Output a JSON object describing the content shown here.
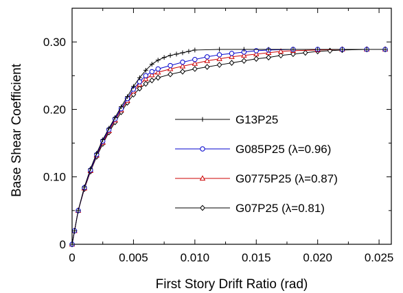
{
  "chart_data": {
    "type": "line",
    "title": "",
    "xlabel": "First Story Drift Ratio (rad)",
    "ylabel": "Base Shear Coefficient",
    "xlim": [
      0,
      0.026
    ],
    "ylim": [
      0,
      0.35
    ],
    "x_ticks": [
      0,
      0.005,
      0.01,
      0.015,
      0.02,
      0.025
    ],
    "x_tick_labels": [
      "0",
      "0.005",
      "0.010",
      "0.015",
      "0.020",
      "0.025"
    ],
    "y_ticks": [
      0,
      0.1,
      0.2,
      0.3
    ],
    "y_tick_labels": [
      "0",
      "0.10",
      "0.20",
      "0.30"
    ],
    "grid": false,
    "legend_position": "center-right",
    "series": [
      {
        "name": "G13P25",
        "color": "#000000",
        "marker": "plus",
        "x": [
          0,
          0.0002,
          0.0005,
          0.001,
          0.0015,
          0.002,
          0.0025,
          0.003,
          0.0035,
          0.004,
          0.0045,
          0.005,
          0.0055,
          0.006,
          0.0065,
          0.007,
          0.0075,
          0.008,
          0.0085,
          0.009,
          0.0095,
          0.01,
          0.012,
          0.014,
          0.016,
          0.018,
          0.02,
          0.022,
          0.024,
          0.0255
        ],
        "y": [
          0,
          0.02,
          0.05,
          0.085,
          0.112,
          0.135,
          0.155,
          0.172,
          0.188,
          0.204,
          0.219,
          0.234,
          0.247,
          0.258,
          0.267,
          0.273,
          0.277,
          0.28,
          0.282,
          0.284,
          0.286,
          0.288,
          0.289,
          0.289,
          0.289,
          0.289,
          0.289,
          0.289,
          0.289,
          0.289
        ]
      },
      {
        "name": "G085P25 (λ=0.96)",
        "color": "#0000cc",
        "marker": "circle",
        "x": [
          0,
          0.0002,
          0.0005,
          0.001,
          0.0015,
          0.002,
          0.0025,
          0.003,
          0.0035,
          0.004,
          0.0045,
          0.005,
          0.0055,
          0.006,
          0.0065,
          0.007,
          0.008,
          0.009,
          0.01,
          0.011,
          0.012,
          0.013,
          0.014,
          0.015,
          0.016,
          0.018,
          0.02,
          0.022,
          0.024,
          0.0255
        ],
        "y": [
          0,
          0.02,
          0.05,
          0.084,
          0.11,
          0.133,
          0.153,
          0.17,
          0.186,
          0.201,
          0.216,
          0.23,
          0.241,
          0.25,
          0.256,
          0.26,
          0.265,
          0.27,
          0.274,
          0.278,
          0.281,
          0.283,
          0.285,
          0.287,
          0.288,
          0.289,
          0.289,
          0.289,
          0.289,
          0.289
        ]
      },
      {
        "name": "G0775P25 (λ=0.87)",
        "color": "#cc0000",
        "marker": "triangle",
        "x": [
          0,
          0.0002,
          0.0005,
          0.001,
          0.0015,
          0.002,
          0.0025,
          0.003,
          0.0035,
          0.004,
          0.0045,
          0.005,
          0.0055,
          0.006,
          0.0065,
          0.007,
          0.008,
          0.009,
          0.01,
          0.011,
          0.012,
          0.013,
          0.014,
          0.015,
          0.016,
          0.017,
          0.018,
          0.02,
          0.022,
          0.024,
          0.0255
        ],
        "y": [
          0,
          0.02,
          0.05,
          0.083,
          0.109,
          0.132,
          0.151,
          0.168,
          0.184,
          0.199,
          0.213,
          0.227,
          0.237,
          0.245,
          0.251,
          0.255,
          0.26,
          0.264,
          0.268,
          0.272,
          0.275,
          0.278,
          0.28,
          0.282,
          0.284,
          0.286,
          0.287,
          0.288,
          0.289,
          0.289,
          0.289
        ]
      },
      {
        "name": "G07P25 (λ=0.81)",
        "color": "#000000",
        "marker": "diamond",
        "x": [
          0,
          0.0002,
          0.0005,
          0.001,
          0.0015,
          0.002,
          0.0025,
          0.003,
          0.0035,
          0.004,
          0.0045,
          0.005,
          0.0055,
          0.006,
          0.0065,
          0.007,
          0.008,
          0.009,
          0.01,
          0.011,
          0.012,
          0.013,
          0.014,
          0.015,
          0.016,
          0.017,
          0.018,
          0.019,
          0.02,
          0.021,
          0.022,
          0.024,
          0.0255
        ],
        "y": [
          0,
          0.02,
          0.05,
          0.082,
          0.108,
          0.13,
          0.149,
          0.166,
          0.181,
          0.196,
          0.21,
          0.222,
          0.231,
          0.238,
          0.243,
          0.247,
          0.252,
          0.256,
          0.26,
          0.263,
          0.266,
          0.269,
          0.272,
          0.275,
          0.277,
          0.28,
          0.282,
          0.284,
          0.286,
          0.287,
          0.288,
          0.289,
          0.289
        ]
      }
    ]
  }
}
